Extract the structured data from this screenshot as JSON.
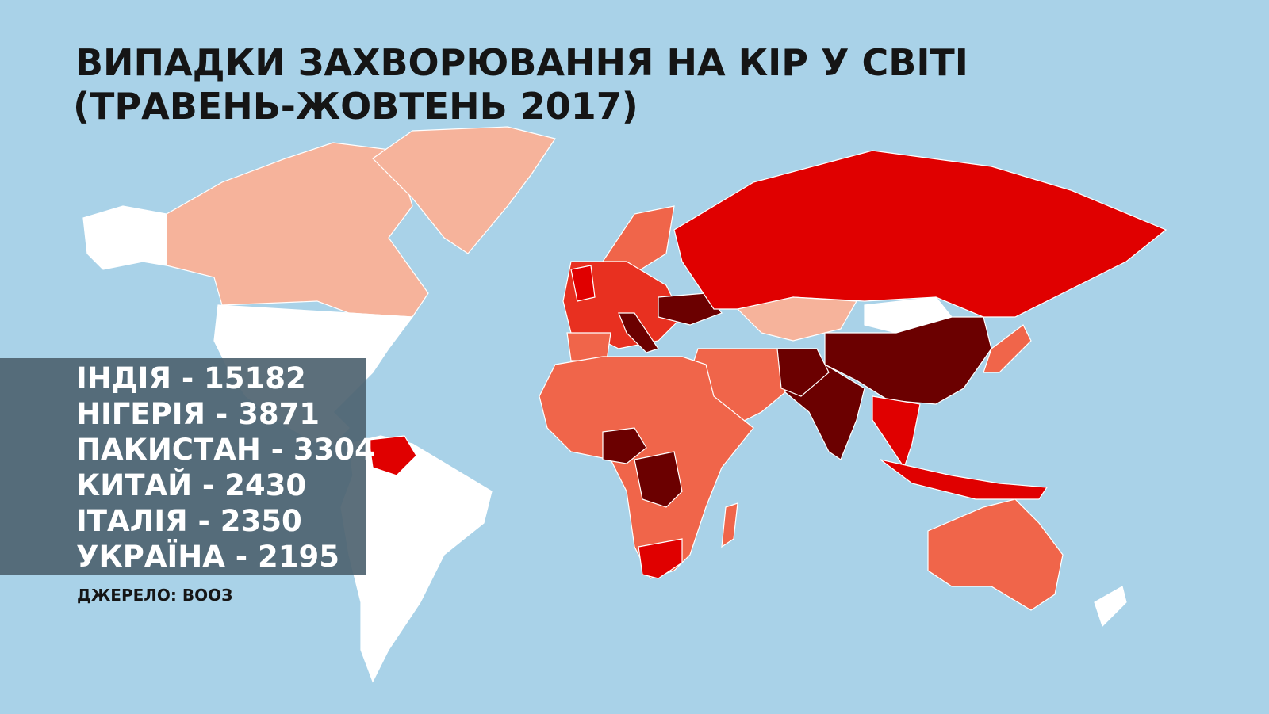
{
  "title": {
    "line1": "ВИПАДКИ ЗАХВОРЮВАННЯ НА КІР У СВІТІ",
    "line2": "(ТРАВЕНЬ-ЖОВТЕНЬ 2017)"
  },
  "leaders": [
    "ІНДІЯ - 15182",
    "НІГЕРІЯ - 3871",
    "ПАКИСТАН - 3304",
    "КИТАЙ - 2430",
    "ІТАЛІЯ - 2350",
    "УКРАЇНА - 2195"
  ],
  "source": "ДЖЕРЕЛО: ВООЗ"
}
